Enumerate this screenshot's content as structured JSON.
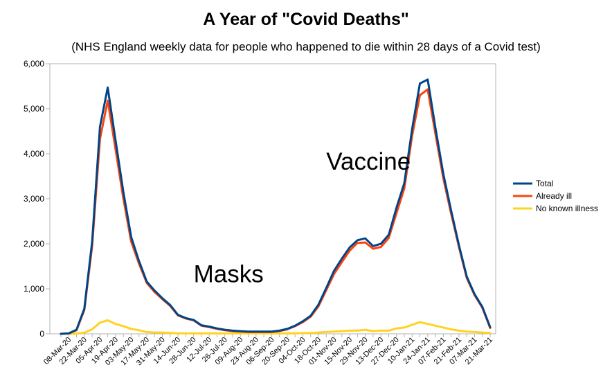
{
  "chart_data": {
    "type": "line",
    "title": "A Year of \"Covid Deaths\"",
    "subtitle": "(NHS England weekly data for people who happened to die within 28 days of a Covid test)",
    "xlabel": "",
    "ylabel": "",
    "ylim": [
      0,
      6000
    ],
    "yticks": [
      0,
      1000,
      2000,
      3000,
      4000,
      5000,
      6000
    ],
    "ytick_labels": [
      "0",
      "1,000",
      "2,000",
      "3,000",
      "4,000",
      "5,000",
      "6,000"
    ],
    "grid": false,
    "legend_position": "right",
    "x_tick_labels": [
      "08-Mar-20",
      "22-Mar-20",
      "05-Apr-20",
      "19-Apr-20",
      "03-May-20",
      "17-May-20",
      "31-May-20",
      "14-Jun-20",
      "28-Jun-20",
      "12-Jul-20",
      "26-Jul-20",
      "09-Aug-20",
      "23-Aug-20",
      "06-Sep-20",
      "20-Sep-20",
      "04-Oct-20",
      "18-Oct-20",
      "01-Nov-20",
      "15-Nov-20",
      "29-Nov-20",
      "13-Dec-20",
      "27-Dec-20",
      "10-Jan-21",
      "24-Jan-21",
      "07-Feb-21",
      "21-Feb-21",
      "07-Mar-21",
      "21-Mar-21"
    ],
    "x": [
      "01-Mar-20",
      "08-Mar-20",
      "15-Mar-20",
      "22-Mar-20",
      "29-Mar-20",
      "05-Apr-20",
      "12-Apr-20",
      "19-Apr-20",
      "26-Apr-20",
      "03-May-20",
      "10-May-20",
      "17-May-20",
      "24-May-20",
      "31-May-20",
      "07-Jun-20",
      "14-Jun-20",
      "21-Jun-20",
      "28-Jun-20",
      "05-Jul-20",
      "12-Jul-20",
      "19-Jul-20",
      "26-Jul-20",
      "02-Aug-20",
      "09-Aug-20",
      "16-Aug-20",
      "23-Aug-20",
      "30-Aug-20",
      "06-Sep-20",
      "13-Sep-20",
      "20-Sep-20",
      "27-Sep-20",
      "04-Oct-20",
      "11-Oct-20",
      "18-Oct-20",
      "25-Oct-20",
      "01-Nov-20",
      "08-Nov-20",
      "15-Nov-20",
      "22-Nov-20",
      "29-Nov-20",
      "06-Dec-20",
      "13-Dec-20",
      "20-Dec-20",
      "27-Dec-20",
      "03-Jan-21",
      "10-Jan-21",
      "17-Jan-21",
      "24-Jan-21",
      "31-Jan-21",
      "07-Feb-21",
      "14-Feb-21",
      "21-Feb-21",
      "28-Feb-21",
      "07-Mar-21",
      "14-Mar-21",
      "21-Mar-21"
    ],
    "series": [
      {
        "name": "Total",
        "color": "#004586",
        "values": [
          0,
          10,
          90,
          560,
          2050,
          4600,
          5470,
          4300,
          3150,
          2150,
          1620,
          1160,
          960,
          790,
          640,
          420,
          350,
          310,
          190,
          160,
          120,
          90,
          70,
          60,
          50,
          50,
          50,
          50,
          70,
          110,
          180,
          280,
          400,
          650,
          1020,
          1400,
          1670,
          1920,
          2080,
          2120,
          1950,
          2000,
          2200,
          2800,
          3350,
          4550,
          5560,
          5650,
          4560,
          3550,
          2740,
          1970,
          1270,
          880,
          600,
          150
        ]
      },
      {
        "name": "Already ill",
        "color": "#ff420e",
        "values": [
          0,
          10,
          80,
          530,
          1950,
          4330,
          5180,
          4100,
          3000,
          2050,
          1560,
          1130,
          930,
          770,
          620,
          410,
          340,
          300,
          180,
          150,
          110,
          80,
          60,
          50,
          40,
          40,
          40,
          40,
          60,
          100,
          170,
          260,
          380,
          610,
          970,
          1330,
          1590,
          1850,
          2020,
          2030,
          1890,
          1930,
          2130,
          2680,
          3230,
          4400,
          5300,
          5430,
          4430,
          3450,
          2670,
          1930,
          1240,
          860,
          580,
          130
        ]
      },
      {
        "name": "No known illness",
        "color": "#ffd320",
        "values": [
          0,
          0,
          5,
          25,
          100,
          250,
          300,
          220,
          170,
          110,
          80,
          40,
          30,
          30,
          20,
          10,
          10,
          10,
          10,
          10,
          10,
          10,
          10,
          10,
          10,
          10,
          10,
          10,
          10,
          10,
          10,
          20,
          20,
          30,
          40,
          50,
          60,
          70,
          70,
          90,
          60,
          70,
          70,
          120,
          140,
          200,
          260,
          220,
          180,
          140,
          100,
          70,
          50,
          40,
          30,
          20
        ]
      }
    ],
    "annotations": [
      {
        "text": "Masks",
        "at_x": "28-Jun-20",
        "at_y": 1150
      },
      {
        "text": "Vaccine",
        "at_x": "25-Oct-20",
        "at_y": 3650
      }
    ]
  }
}
